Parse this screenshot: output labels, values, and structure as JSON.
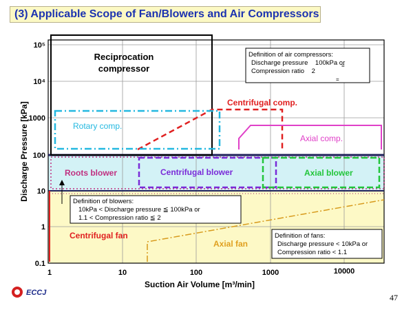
{
  "title": "(3) Applicable Scope of Fan/Blowers and Air Compressors",
  "axes": {
    "x_label": "Suction Air Volume [m³/min]",
    "y_label": "Discharge Pressure [kPa]",
    "x_ticks": [
      "1",
      "10",
      "100",
      "1000",
      "10000"
    ],
    "y_ticks": [
      "0.1",
      "1",
      "10",
      "100",
      "1000",
      "10⁴",
      "10⁵"
    ]
  },
  "regions": {
    "reciprocation": {
      "line1": "Reciprocation",
      "line2": "compressor"
    },
    "centrifugal_comp": "Centrifugal comp.",
    "rotary_comp": "Rotary comp.",
    "axial_comp": "Axial comp.",
    "roots_blower": "Roots blower",
    "centrifugal_blower": "Centrifugal blower",
    "axial_blower": "Axial blower",
    "centrifugal_fan": "Centrifugal fan",
    "axial_fan": "Axial fan"
  },
  "definitions": {
    "air_compressors": {
      "heading": "Definition of air compressors:",
      "line1": "Discharge pressure    100kPa or",
      "line2": "Compression ratio    2"
    },
    "blowers": {
      "heading": "Definition of blowers:",
      "line1": "10kPa < Discharge pressure ≦ 100kPa or",
      "line2": "1.1 < Compression ratio ≦ 2"
    },
    "fans": {
      "heading": "Definition of fans:",
      "line1": "Discharge pressure < 10kPa or",
      "line2": "Compression ratio < 1.1"
    }
  },
  "logo_text": "ECCJ",
  "page_number": "47",
  "colors": {
    "title_text": "#1c33b0",
    "title_bg": "#fcf9c4",
    "fan_zone": "#fdf9c6",
    "blower_zone": "#d3f2f6",
    "red": "#e02020",
    "rotary": "#23b8e0",
    "axial_comp": "#e040c8",
    "centrifugal_blower": "#7a2bd8",
    "axial_blower": "#22c53a",
    "axial_fan": "#d79a1c",
    "fan_axial_text": "#e0a020",
    "zone_border": "#20205a"
  }
}
